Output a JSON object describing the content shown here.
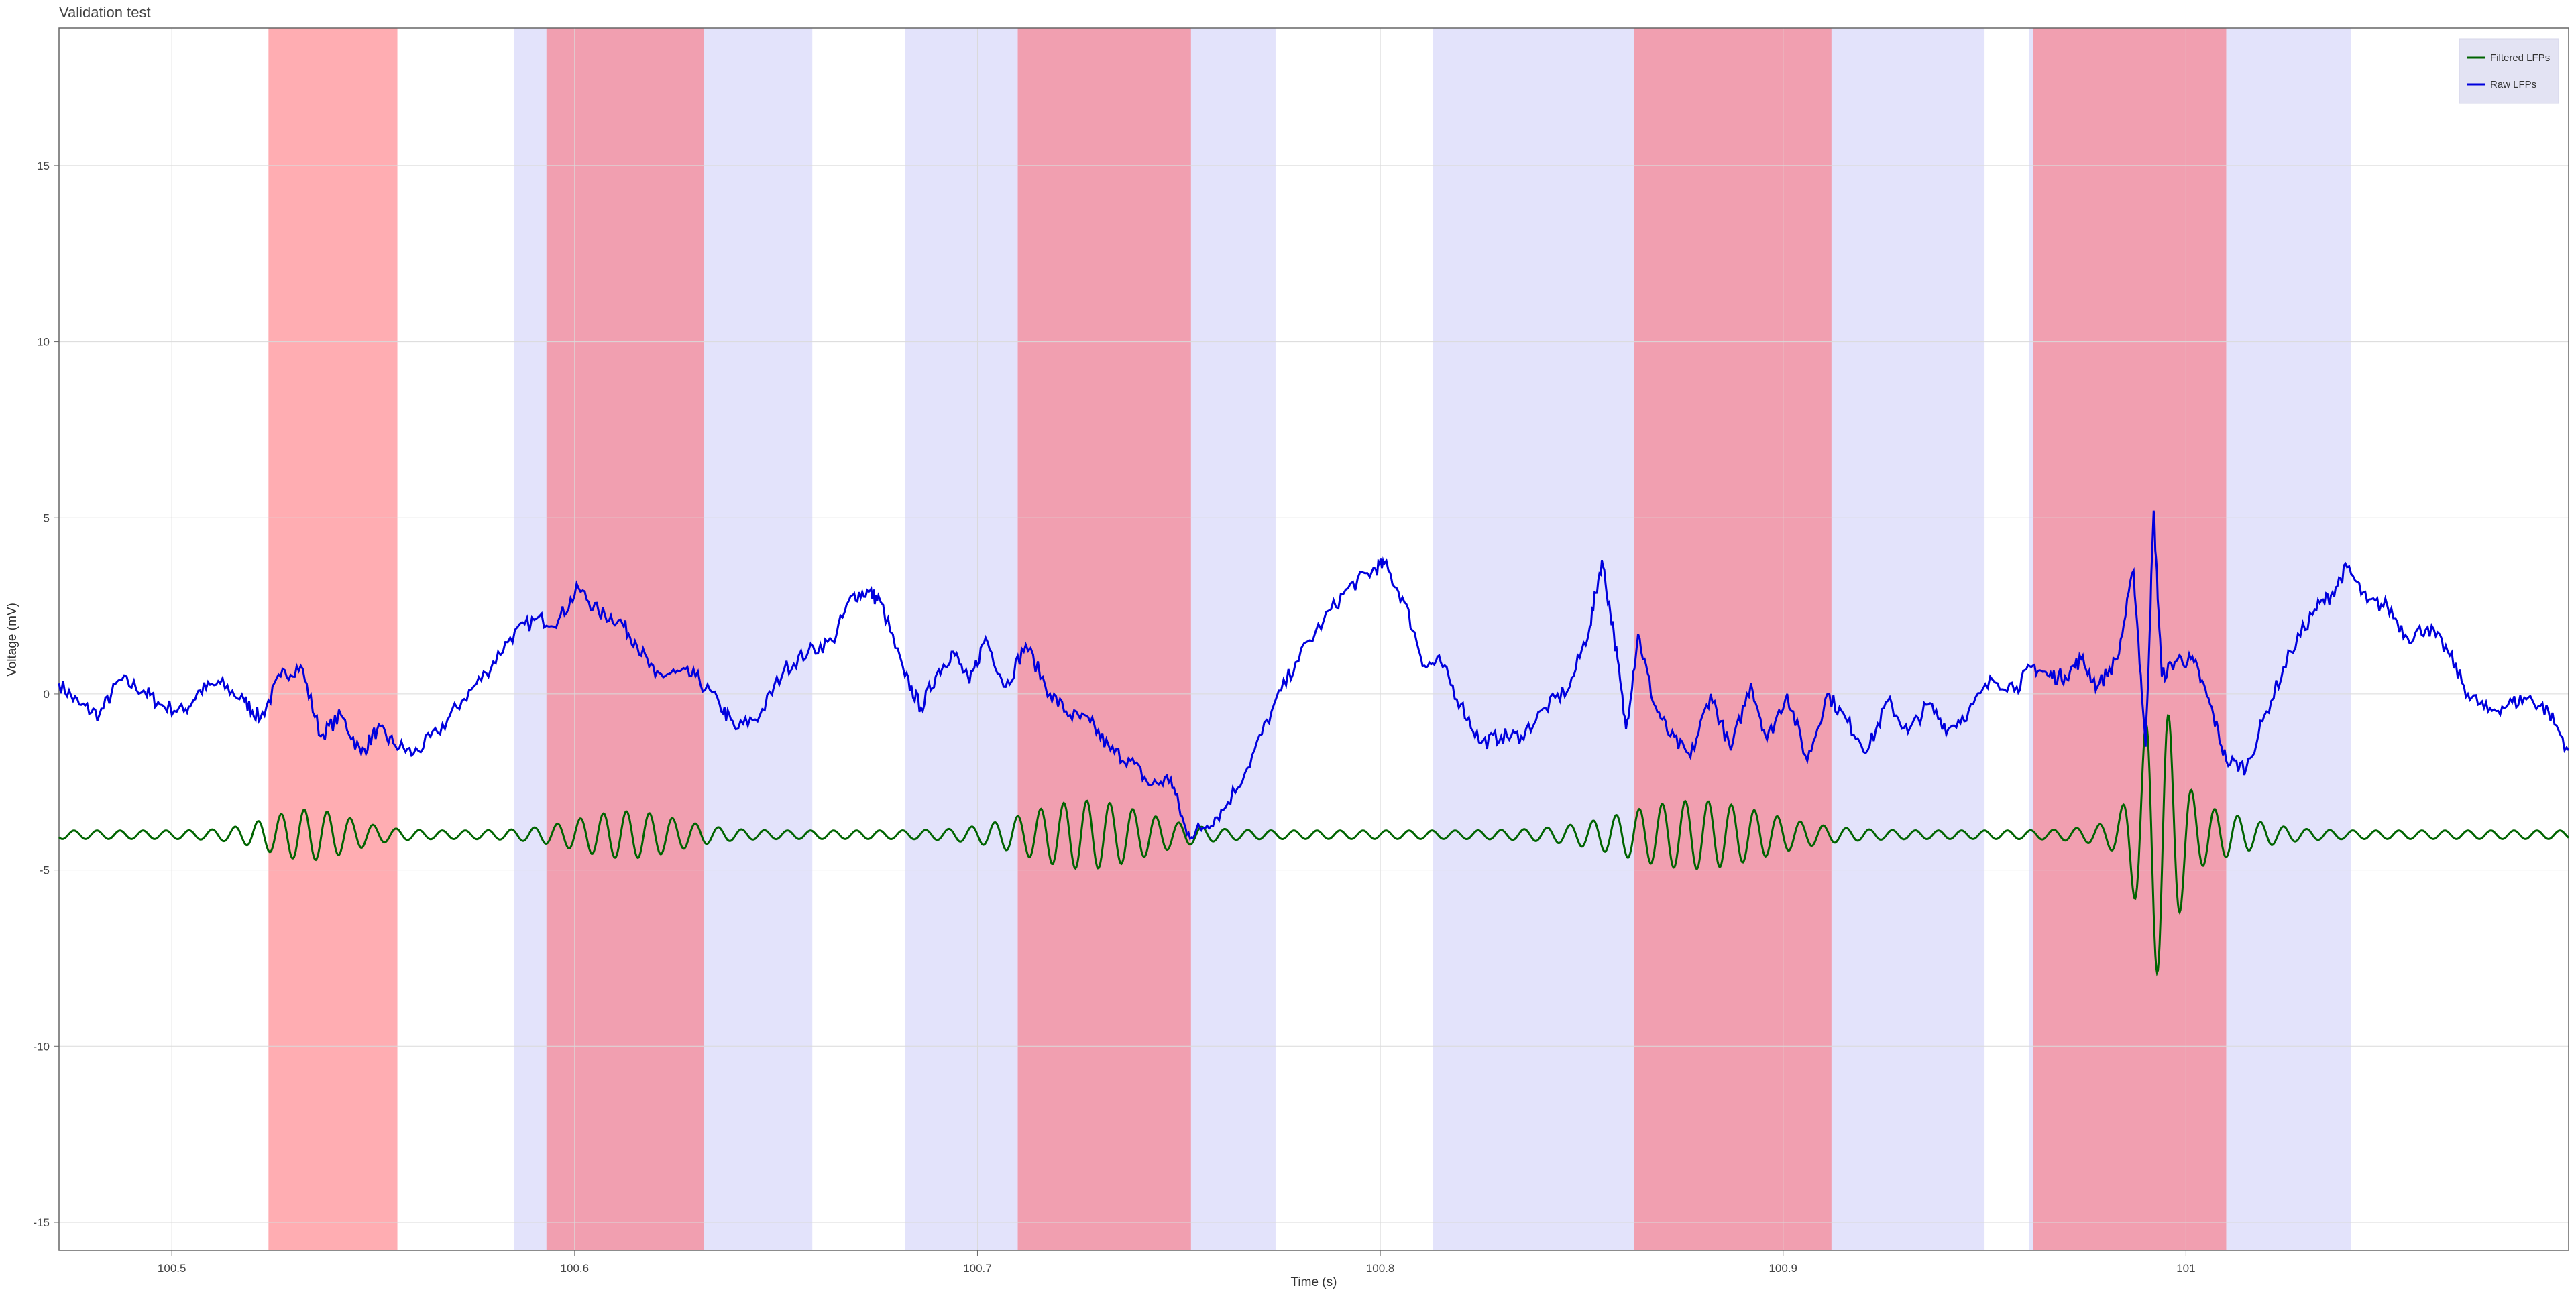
{
  "window": {
    "title": "Validation test"
  },
  "chart_data": {
    "type": "line",
    "title": "Validation test",
    "xlabel": "Time (s)",
    "ylabel": "Voltage (mV)",
    "xlim": [
      100.472,
      101.095
    ],
    "ylim": [
      -15.8,
      18.9
    ],
    "x_ticks": [
      100.5,
      100.6,
      100.7,
      100.8,
      100.9,
      101
    ],
    "x_tick_labels": [
      "100.5",
      "100.6",
      "100.7",
      "100.8",
      "100.9",
      "101"
    ],
    "y_ticks": [
      15,
      10,
      5,
      0,
      -5,
      -10,
      -15
    ],
    "y_tick_labels": [
      "15",
      "10",
      "5",
      "0",
      "-5",
      "-10",
      "-15"
    ],
    "grid": true,
    "legend_position": "top-right",
    "colors": {
      "raw": "#0000dd",
      "filtered": "#006400",
      "red_band": "#ff5c66",
      "blue_band": "#c8c8f8"
    },
    "shaded_regions": [
      {
        "kind": "red",
        "x0": 100.524,
        "x1": 100.556
      },
      {
        "kind": "blue",
        "x0": 100.585,
        "x1": 100.659
      },
      {
        "kind": "red",
        "x0": 100.593,
        "x1": 100.632
      },
      {
        "kind": "blue",
        "x0": 100.682,
        "x1": 100.774
      },
      {
        "kind": "red",
        "x0": 100.71,
        "x1": 100.753
      },
      {
        "kind": "blue",
        "x0": 100.813,
        "x1": 100.95
      },
      {
        "kind": "red",
        "x0": 100.863,
        "x1": 100.912
      },
      {
        "kind": "blue",
        "x0": 100.961,
        "x1": 101.041
      },
      {
        "kind": "red",
        "x0": 100.962,
        "x1": 101.01
      }
    ],
    "series": [
      {
        "name": "Raw LFPs",
        "x": [
          100.472,
          100.477,
          100.482,
          100.487,
          100.493,
          100.497,
          100.503,
          100.507,
          100.512,
          100.518,
          100.522,
          100.527,
          100.532,
          100.537,
          100.542,
          100.547,
          100.551,
          100.555,
          100.56,
          100.566,
          100.572,
          100.578,
          100.584,
          100.59,
          100.596,
          100.601,
          100.606,
          100.611,
          100.615,
          100.62,
          100.625,
          100.63,
          100.636,
          100.64,
          100.646,
          100.652,
          100.658,
          100.664,
          100.669,
          100.673,
          100.676,
          100.682,
          100.686,
          100.69,
          100.694,
          100.698,
          100.702,
          100.707,
          100.712,
          100.718,
          100.723,
          100.728,
          100.733,
          100.738,
          100.743,
          100.748,
          100.752,
          100.756,
          100.761,
          100.767,
          100.773,
          100.779,
          100.786,
          100.792,
          100.798,
          100.801,
          100.806,
          100.811,
          100.815,
          100.82,
          100.825,
          100.83,
          100.835,
          100.841,
          100.847,
          100.852,
          100.855,
          100.858,
          100.861,
          100.864,
          100.868,
          100.872,
          100.877,
          100.882,
          100.887,
          100.892,
          100.896,
          100.901,
          100.906,
          100.911,
          100.916,
          100.921,
          100.926,
          100.931,
          100.936,
          100.941,
          100.946,
          100.952,
          100.958,
          100.962,
          100.966,
          100.97,
          100.974,
          100.978,
          100.983,
          100.987,
          100.99,
          100.992,
          100.994,
          100.998,
          101.002,
          101.006,
          101.01,
          101.015,
          101.02,
          101.026,
          101.032,
          101.036,
          101.04,
          101.045,
          101.05,
          101.055,
          101.06,
          101.065,
          101.07,
          101.075,
          101.08,
          101.085,
          101.09,
          101.095
        ],
        "y": [
          0.3,
          -0.3,
          -0.6,
          0.4,
          0.1,
          -0.3,
          -0.5,
          0.1,
          0.3,
          -0.2,
          -0.7,
          0.5,
          0.8,
          -1.2,
          -0.6,
          -1.7,
          -1.0,
          -1.4,
          -1.7,
          -1.1,
          -0.2,
          0.6,
          1.6,
          2.1,
          2.1,
          3.0,
          2.3,
          2.1,
          1.5,
          0.5,
          0.6,
          0.5,
          -0.3,
          -1.0,
          -0.6,
          0.7,
          1.2,
          1.5,
          2.8,
          2.9,
          2.6,
          0.5,
          -0.4,
          0.6,
          1.2,
          0.3,
          1.6,
          0.2,
          1.4,
          0.0,
          -0.6,
          -0.8,
          -1.6,
          -1.9,
          -2.6,
          -2.4,
          -4.0,
          -3.8,
          -3.3,
          -2.1,
          -0.5,
          0.9,
          2.1,
          3.0,
          3.5,
          3.7,
          2.6,
          0.8,
          0.9,
          -0.3,
          -1.4,
          -1.2,
          -1.2,
          -0.4,
          0.2,
          1.9,
          3.8,
          1.7,
          -1.0,
          1.7,
          -0.3,
          -1.2,
          -1.8,
          0.0,
          -1.6,
          0.3,
          -1.3,
          0.0,
          -1.9,
          0.0,
          -0.8,
          -1.6,
          -0.2,
          -1.1,
          -0.3,
          -1.0,
          -0.5,
          0.4,
          0.2,
          0.8,
          0.5,
          0.5,
          1.0,
          0.2,
          1.0,
          3.5,
          -1.5,
          5.2,
          0.5,
          1.0,
          0.9,
          -0.3,
          -1.9,
          -2.1,
          -0.5,
          1.2,
          2.4,
          2.8,
          3.6,
          2.6,
          2.5,
          1.6,
          1.9,
          1.2,
          0.0,
          -0.5,
          -0.3,
          -0.1,
          -0.5,
          -1.6
        ]
      },
      {
        "name": "Filtered LFPs",
        "baseline": -4.0,
        "bursts": [
          {
            "center": 100.534,
            "amplitude": 0.6,
            "width": 0.014
          },
          {
            "center": 100.613,
            "amplitude": 0.55,
            "width": 0.017
          },
          {
            "center": 100.727,
            "amplitude": 0.85,
            "width": 0.02
          },
          {
            "center": 100.878,
            "amplitude": 0.85,
            "width": 0.024
          },
          {
            "center": 100.993,
            "amplitude": 3.2,
            "width": 0.006
          },
          {
            "center": 101.0,
            "amplitude": 0.7,
            "width": 0.018
          }
        ],
        "carrier_frequency_hz": 175,
        "background_amplitude": 0.12
      }
    ]
  },
  "legend": {
    "items": [
      {
        "label": "Filtered LFPs",
        "color": "#006400"
      },
      {
        "label": "Raw LFPs",
        "color": "#0000dd"
      }
    ]
  }
}
